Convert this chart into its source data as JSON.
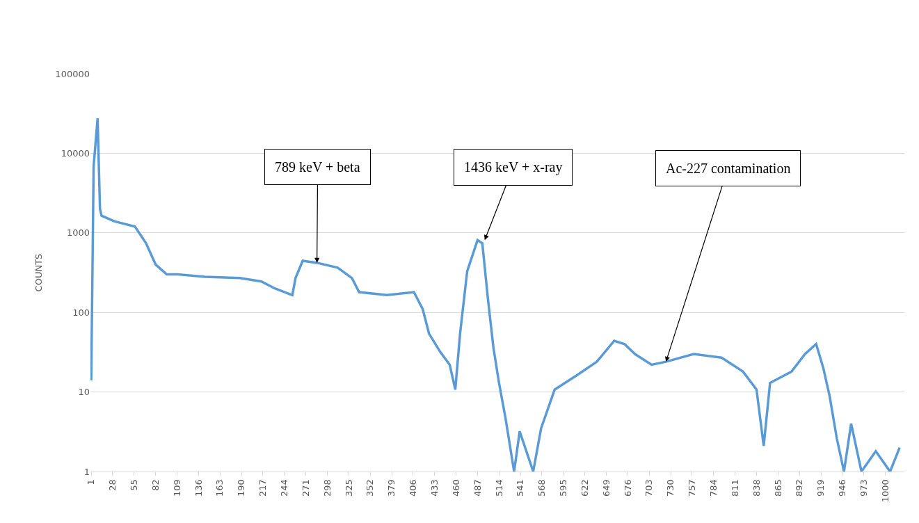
{
  "chart_data": {
    "type": "line",
    "ylabel": "COUNTS",
    "log": "y",
    "grid": "y",
    "marker": "none",
    "line_style": "solid",
    "x": [
      1,
      4,
      9,
      12,
      14,
      30,
      56,
      70,
      82,
      96,
      110,
      144,
      188,
      215,
      232,
      254,
      258,
      267,
      285,
      311,
      329,
      338,
      373,
      407,
      418,
      426,
      440,
      452,
      459,
      465,
      474,
      487,
      493,
      500,
      507,
      514,
      522,
      533,
      540,
      557,
      567,
      584,
      611,
      637,
      659,
      672,
      685,
      706,
      724,
      759,
      794,
      821,
      838,
      847,
      855,
      882,
      899,
      913,
      922,
      930,
      939,
      948,
      957,
      970,
      988,
      1006,
      1018
    ],
    "series": [
      {
        "color": "#5b9bd5",
        "values": [
          14,
          6800,
          27500,
          2000,
          1640,
          1400,
          1200,
          740,
          400,
          300,
          300,
          280,
          270,
          245,
          200,
          165,
          270,
          445,
          420,
          365,
          270,
          180,
          165,
          180,
          110,
          54,
          32,
          22,
          10.7,
          54,
          330,
          810,
          740,
          150,
          36,
          13,
          4.8,
          1,
          3.2,
          1,
          3.5,
          10.7,
          16,
          24,
          44,
          40,
          30,
          22,
          24,
          30,
          27,
          18,
          10.7,
          2.1,
          13,
          18,
          30,
          40,
          20,
          8.8,
          2.6,
          1,
          4,
          1,
          1.8,
          1,
          2
        ]
      }
    ],
    "xlim": [
      0,
      1024
    ],
    "xticks": [
      1,
      28,
      55,
      82,
      109,
      136,
      163,
      190,
      217,
      244,
      271,
      298,
      325,
      352,
      379,
      406,
      433,
      460,
      487,
      514,
      541,
      568,
      595,
      622,
      649,
      676,
      703,
      730,
      757,
      784,
      811,
      838,
      865,
      892,
      919,
      946,
      973,
      1000
    ],
    "ylim": [
      1,
      100000
    ],
    "yticks": [
      1,
      10,
      100,
      1000,
      10000,
      100000
    ],
    "annotations": [
      {
        "text": "789 keV + beta",
        "x": 285,
        "y": 420
      },
      {
        "text": "1436 keV + x-ray",
        "x": 496,
        "y": 810
      },
      {
        "text": "Ac-227 contamination",
        "x": 724,
        "y": 24
      }
    ]
  }
}
